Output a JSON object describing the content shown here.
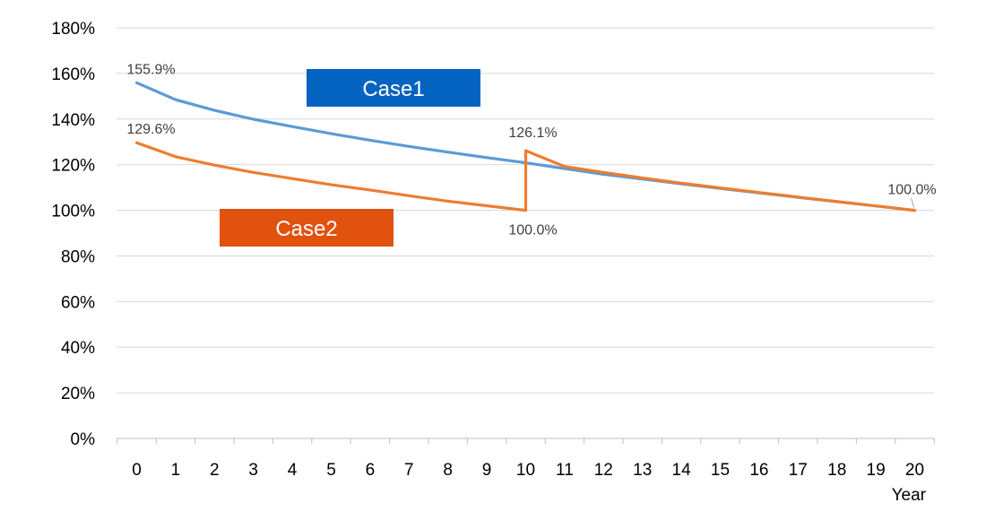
{
  "chart_data": {
    "type": "line",
    "title": "",
    "xlabel": "Year",
    "ylabel": "",
    "x": [
      0,
      1,
      2,
      3,
      4,
      5,
      6,
      7,
      8,
      9,
      10,
      11,
      12,
      13,
      14,
      15,
      16,
      17,
      18,
      19,
      20
    ],
    "x_ticks": [
      "0",
      "1",
      "2",
      "3",
      "4",
      "5",
      "6",
      "7",
      "8",
      "9",
      "10",
      "11",
      "12",
      "13",
      "14",
      "15",
      "16",
      "17",
      "18",
      "19",
      "20"
    ],
    "ylim": [
      0,
      180
    ],
    "y_ticks": [
      "0%",
      "20%",
      "40%",
      "60%",
      "80%",
      "100%",
      "120%",
      "140%",
      "160%",
      "180%"
    ],
    "grid": "horizontal",
    "series": [
      {
        "name": "Case1",
        "color": "#5B9BD5",
        "points": [
          [
            0,
            155.9
          ],
          [
            1,
            148.5
          ],
          [
            2,
            143.8
          ],
          [
            3,
            139.9
          ],
          [
            4,
            136.7
          ],
          [
            5,
            133.6
          ],
          [
            6,
            130.7
          ],
          [
            7,
            128.0
          ],
          [
            8,
            125.5
          ],
          [
            9,
            123.1
          ],
          [
            10,
            120.8
          ],
          [
            11,
            118.3
          ],
          [
            12,
            115.8
          ],
          [
            13,
            113.7
          ],
          [
            14,
            111.6
          ],
          [
            15,
            109.6
          ],
          [
            16,
            107.6
          ],
          [
            17,
            105.7
          ],
          [
            18,
            103.8
          ],
          [
            19,
            101.9
          ],
          [
            20,
            100.0
          ]
        ]
      },
      {
        "name": "Case2",
        "color": "#ED7D31",
        "points": [
          [
            0,
            129.6
          ],
          [
            1,
            123.5
          ],
          [
            2,
            119.8
          ],
          [
            3,
            116.6
          ],
          [
            4,
            113.9
          ],
          [
            5,
            111.2
          ],
          [
            6,
            108.9
          ],
          [
            7,
            106.4
          ],
          [
            8,
            104.0
          ],
          [
            9,
            102.0
          ],
          [
            10,
            100.0
          ],
          [
            10,
            126.1
          ],
          [
            11,
            119.2
          ],
          [
            12,
            116.6
          ],
          [
            13,
            114.2
          ],
          [
            14,
            111.9
          ],
          [
            15,
            109.8
          ],
          [
            16,
            107.8
          ],
          [
            17,
            105.8
          ],
          [
            18,
            103.8
          ],
          [
            19,
            101.9
          ],
          [
            20,
            100.0
          ]
        ]
      }
    ],
    "data_labels": [
      {
        "text": "155.9%",
        "x": 0,
        "y": 155.9
      },
      {
        "text": "129.6%",
        "x": 0,
        "y": 129.6
      },
      {
        "text": "126.1%",
        "x": 10,
        "y": 126.1
      },
      {
        "text": "100.0%",
        "x": 10,
        "y": 100.0
      },
      {
        "text": "100.0%",
        "x": 20,
        "y": 100.0
      }
    ],
    "annotations": [
      {
        "text": "Case1",
        "color": "#0563C1"
      },
      {
        "text": "Case2",
        "color": "#E0520E"
      }
    ]
  }
}
